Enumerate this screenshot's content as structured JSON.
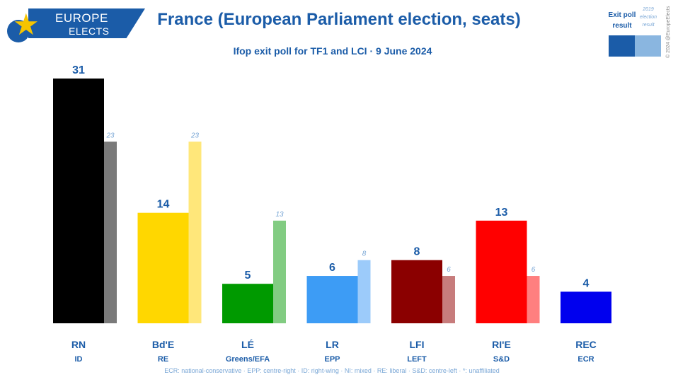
{
  "header": {
    "logo_line1": "EUROPE",
    "logo_line2": "ELECTS",
    "title": "France (European Parliament election, seats)",
    "subtitle": "Ifop exit poll for TF1 and LCI · 9 June 2024"
  },
  "legend": {
    "current_label": "Exit poll result",
    "previous_label": "2019 election result"
  },
  "copyright": "© 2024 @EuropeElects",
  "footnote": "ECR: national-conservative · EPP: centre-right · ID: right-wing · NI: mixed · RE: liberal · S&D: centre-left · *: unaffiliated",
  "chart_data": {
    "type": "bar",
    "title": "France (European Parliament election, seats)",
    "subtitle": "Ifop exit poll for TF1 and LCI · 9 June 2024",
    "categories": [
      "RN",
      "Bd'E",
      "LÉ",
      "LR",
      "LFI",
      "RI'E",
      "REC"
    ],
    "groups": [
      "ID",
      "RE",
      "Greens/EFA",
      "EPP",
      "LEFT",
      "S&D",
      "ECR"
    ],
    "series": [
      {
        "name": "Exit poll result",
        "values": [
          31,
          14,
          5,
          6,
          8,
          13,
          4
        ]
      },
      {
        "name": "2019 election result",
        "values": [
          23,
          23,
          13,
          8,
          6,
          6,
          null
        ]
      }
    ],
    "colors": [
      "#000000",
      "#ffd700",
      "#009a00",
      "#3d9cf5",
      "#8b0000",
      "#ff0000",
      "#0000ee"
    ],
    "prev_colors": [
      "#7a7a7a",
      "#ffe77a",
      "#82cc82",
      "#9ccbfa",
      "#c77c7c",
      "#ff7f7f",
      "#7f7ff5"
    ],
    "ylim": [
      0,
      31
    ],
    "grid": false,
    "legend_position": "top-right",
    "label_color": "#1b5ca8",
    "prev_label_color": "#7aa7d6"
  }
}
